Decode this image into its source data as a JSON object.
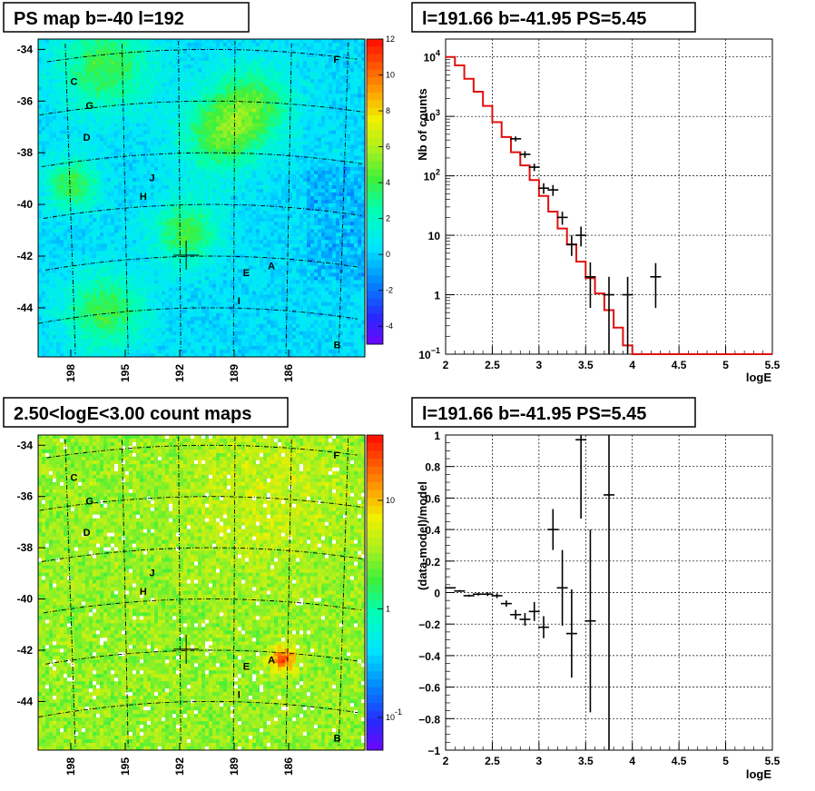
{
  "panels": {
    "ps_map": {
      "title": "PS map b=-40 l=192",
      "type": "heatmap",
      "yticks": [
        "-34",
        "-36",
        "-38",
        "-40",
        "-42",
        "-44"
      ],
      "xticks": [
        "198",
        "195",
        "192",
        "189",
        "186"
      ],
      "colorbar": {
        "ticks": [
          "12",
          "10",
          "8",
          "6",
          "4",
          "2",
          "0",
          "-2",
          "-4"
        ],
        "min": -5,
        "max": 12
      },
      "sources": [
        {
          "label": "C",
          "l": 197.6,
          "b": -34.9
        },
        {
          "label": "G",
          "l": 196.8,
          "b": -35.9
        },
        {
          "label": "D",
          "l": 197.0,
          "b": -37.1
        },
        {
          "label": "J",
          "l": 193.5,
          "b": -38.9
        },
        {
          "label": "H",
          "l": 194.0,
          "b": -39.6
        },
        {
          "label": "E",
          "l": 188.3,
          "b": -42.6
        },
        {
          "label": "A",
          "l": 186.9,
          "b": -42.3
        },
        {
          "label": "I",
          "l": 188.7,
          "b": -43.7
        },
        {
          "label": "F",
          "l": 183.6,
          "b": -34.1
        },
        {
          "label": "B",
          "l": 183.1,
          "b": -45.1
        }
      ]
    },
    "spectrum": {
      "title": "l=191.66 b=-41.95 PS=5.45",
      "type": "line",
      "xlabel": "logE",
      "ylabel": "Nb of counts",
      "xlim": [
        2,
        5.5
      ],
      "ylim": [
        0.1,
        20000
      ],
      "xticks": [
        "2",
        "2.5",
        "3",
        "3.5",
        "4",
        "4.5",
        "5",
        "5.5"
      ],
      "yticks": [
        {
          "v": 0.1,
          "label": "10",
          "sup": "−1"
        },
        {
          "v": 1,
          "label": "1",
          "sup": ""
        },
        {
          "v": 10,
          "label": "10",
          "sup": ""
        },
        {
          "v": 100,
          "label": "10",
          "sup": "2"
        },
        {
          "v": 1000,
          "label": "10",
          "sup": "3"
        },
        {
          "v": 10000,
          "label": "10",
          "sup": "4"
        }
      ],
      "model_color": "#e01010",
      "model": {
        "edges": [
          2.0,
          2.1,
          2.2,
          2.3,
          2.4,
          2.5,
          2.6,
          2.7,
          2.8,
          2.9,
          3.0,
          3.1,
          3.2,
          3.3,
          3.4,
          3.5,
          3.6,
          3.7,
          3.8,
          3.9,
          4.0,
          5.5
        ],
        "values": [
          10000,
          7200,
          4300,
          2600,
          1500,
          800,
          450,
          250,
          150,
          85,
          46,
          25,
          13,
          7,
          3.6,
          1.9,
          1.05,
          0.55,
          0.28,
          0.14,
          0.1
        ]
      },
      "data": [
        {
          "x": 2.75,
          "y": 420,
          "ylo": 380,
          "yhi": 460
        },
        {
          "x": 2.85,
          "y": 230,
          "ylo": 200,
          "yhi": 260
        },
        {
          "x": 2.95,
          "y": 140,
          "ylo": 120,
          "yhi": 160
        },
        {
          "x": 3.05,
          "y": 62,
          "ylo": 50,
          "yhi": 75
        },
        {
          "x": 3.15,
          "y": 58,
          "ylo": 46,
          "yhi": 70
        },
        {
          "x": 3.25,
          "y": 20,
          "ylo": 15,
          "yhi": 25
        },
        {
          "x": 3.35,
          "y": 7,
          "ylo": 4.5,
          "yhi": 10
        },
        {
          "x": 3.45,
          "y": 10,
          "ylo": 6.5,
          "yhi": 14
        },
        {
          "x": 3.55,
          "y": 2,
          "ylo": 0.6,
          "yhi": 3.5
        },
        {
          "x": 3.75,
          "y": 1,
          "ylo": 0.1,
          "yhi": 2
        },
        {
          "x": 3.95,
          "y": 1,
          "ylo": 0.1,
          "yhi": 2
        },
        {
          "x": 4.25,
          "y": 2,
          "ylo": 0.6,
          "yhi": 3.4
        }
      ]
    },
    "count_map": {
      "title": "2.50<logE<3.00 count maps",
      "type": "heatmap",
      "yticks": [
        "-34",
        "-36",
        "-38",
        "-40",
        "-42",
        "-44"
      ],
      "xticks": [
        "198",
        "195",
        "192",
        "189",
        "186"
      ],
      "colorbar": {
        "ticks": [
          {
            "v": 10,
            "label": "10",
            "sup": ""
          },
          {
            "v": 1,
            "label": "1",
            "sup": ""
          },
          {
            "v": 0.1,
            "label": "10",
            "sup": "-1"
          }
        ]
      },
      "sources_ref": "ps_map"
    },
    "residuals": {
      "title": "l=191.66 b=-41.95 PS=5.45",
      "type": "scatter",
      "xlabel": "logE",
      "ylabel": "(data-model)/model",
      "xlim": [
        2,
        5.5
      ],
      "ylim": [
        -1,
        1
      ],
      "xticks": [
        "2",
        "2.5",
        "3",
        "3.5",
        "4",
        "4.5",
        "5",
        "5.5"
      ],
      "yticks": [
        "1",
        "0.8",
        "0.6",
        "0.4",
        "0.2",
        "0",
        "−0.2",
        "−0.4",
        "−0.6",
        "−0.8",
        "−1"
      ],
      "data": [
        {
          "x": 2.05,
          "y": 0.03,
          "err": 0.005
        },
        {
          "x": 2.15,
          "y": 0.01,
          "err": 0.006
        },
        {
          "x": 2.25,
          "y": -0.02,
          "err": 0.007
        },
        {
          "x": 2.35,
          "y": -0.01,
          "err": 0.009
        },
        {
          "x": 2.45,
          "y": -0.01,
          "err": 0.012
        },
        {
          "x": 2.55,
          "y": -0.02,
          "err": 0.015
        },
        {
          "x": 2.65,
          "y": -0.07,
          "err": 0.02
        },
        {
          "x": 2.75,
          "y": -0.14,
          "err": 0.03
        },
        {
          "x": 2.85,
          "y": -0.17,
          "err": 0.04
        },
        {
          "x": 2.95,
          "y": -0.12,
          "err": 0.06
        },
        {
          "x": 3.05,
          "y": -0.22,
          "err": 0.07
        },
        {
          "x": 3.15,
          "y": 0.4,
          "err": 0.13
        },
        {
          "x": 3.25,
          "y": 0.03,
          "err": 0.24
        },
        {
          "x": 3.35,
          "y": -0.26,
          "err": 0.28
        },
        {
          "x": 3.45,
          "y": 0.97,
          "err": 0.5
        },
        {
          "x": 3.55,
          "y": -0.18,
          "err": 0.58
        },
        {
          "x": 3.75,
          "y": 0.62,
          "err": 1.9
        }
      ]
    }
  }
}
